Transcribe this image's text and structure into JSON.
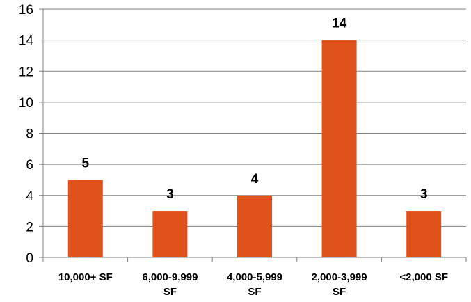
{
  "chart_data": {
    "type": "bar",
    "categories": [
      [
        "10,000+ SF"
      ],
      [
        "6,000-9,999",
        "SF"
      ],
      [
        "4,000-5,999",
        "SF"
      ],
      [
        "2,000-3,999",
        "SF"
      ],
      [
        "<2,000 SF"
      ]
    ],
    "values": [
      5,
      3,
      4,
      14,
      3
    ],
    "data_labels": [
      "5",
      "3",
      "4",
      "14",
      "3"
    ],
    "title": "",
    "xlabel": "",
    "ylabel": "",
    "ylim": [
      0,
      16
    ],
    "yticks": [
      "0",
      "2",
      "4",
      "6",
      "8",
      "10",
      "12",
      "14",
      "16"
    ],
    "grid": true,
    "legend": "none",
    "colors": {
      "bar": "#E0521B",
      "grid": "#808080",
      "axis": "#808080",
      "text": "#000000"
    }
  }
}
